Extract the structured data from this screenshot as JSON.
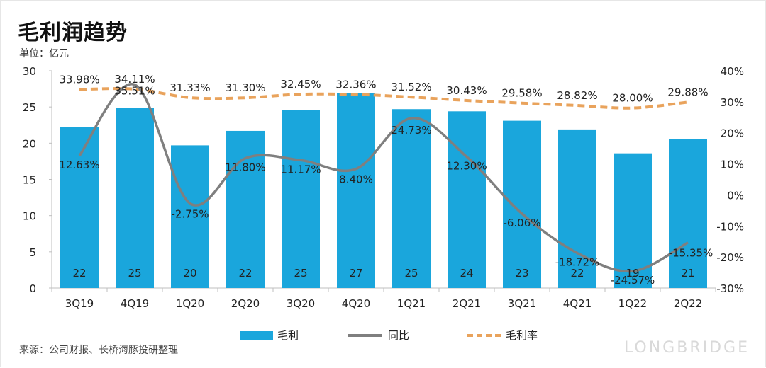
{
  "title": "毛利润趋势",
  "unit": "单位：亿元",
  "source": "来源：公司财报、长桥海豚投研整理",
  "watermark": "LONGBRIDGE",
  "colors": {
    "bar": "#1aa6dc",
    "yoy": "#7f7f7f",
    "margin": "#e9a35c"
  },
  "chart_data": {
    "type": "bar",
    "title": "毛利润趋势",
    "categories": [
      "3Q19",
      "4Q19",
      "1Q20",
      "2Q20",
      "3Q20",
      "4Q20",
      "1Q21",
      "2Q21",
      "3Q21",
      "4Q21",
      "1Q22",
      "2Q22"
    ],
    "series": [
      {
        "name": "毛利",
        "type": "bar",
        "axis": "left",
        "values": [
          22.2,
          24.9,
          19.7,
          21.7,
          24.6,
          26.9,
          24.7,
          24.4,
          23.1,
          21.9,
          18.6,
          20.6
        ],
        "labels": [
          "22",
          "25",
          "20",
          "22",
          "25",
          "27",
          "25",
          "24",
          "23",
          "22",
          "19",
          "21"
        ]
      },
      {
        "name": "同比",
        "type": "line",
        "axis": "right",
        "values": [
          12.63,
          35.51,
          -2.75,
          11.8,
          11.17,
          8.4,
          24.73,
          12.3,
          -6.06,
          -18.72,
          -24.57,
          -15.35
        ],
        "labels": [
          "12.63%",
          "35.51%",
          "-2.75%",
          "11.80%",
          "11.17%",
          "8.40%",
          "24.73%",
          "12.30%",
          "-6.06%",
          "-18.72%",
          "-24.57%",
          "-15.35%"
        ]
      },
      {
        "name": "毛利率",
        "type": "line",
        "style": "dashed",
        "axis": "right",
        "values": [
          33.98,
          34.11,
          31.33,
          31.3,
          32.45,
          32.36,
          31.52,
          30.43,
          29.58,
          28.82,
          28.0,
          29.88
        ],
        "labels": [
          "33.98%",
          "34.11%",
          "31.33%",
          "31.30%",
          "32.45%",
          "32.36%",
          "31.52%",
          "30.43%",
          "29.58%",
          "28.82%",
          "28.00%",
          "29.88%"
        ]
      }
    ],
    "y_left": {
      "min": 0,
      "max": 30,
      "ticks": [
        "0",
        "5",
        "10",
        "15",
        "20",
        "25",
        "30"
      ]
    },
    "y_right": {
      "min": -30,
      "max": 40,
      "ticks": [
        "-30%",
        "-20%",
        "-10%",
        "0%",
        "10%",
        "20%",
        "30%",
        "40%"
      ]
    },
    "legend": [
      "毛利",
      "同比",
      "毛利率"
    ],
    "legend_position": "bottom"
  }
}
